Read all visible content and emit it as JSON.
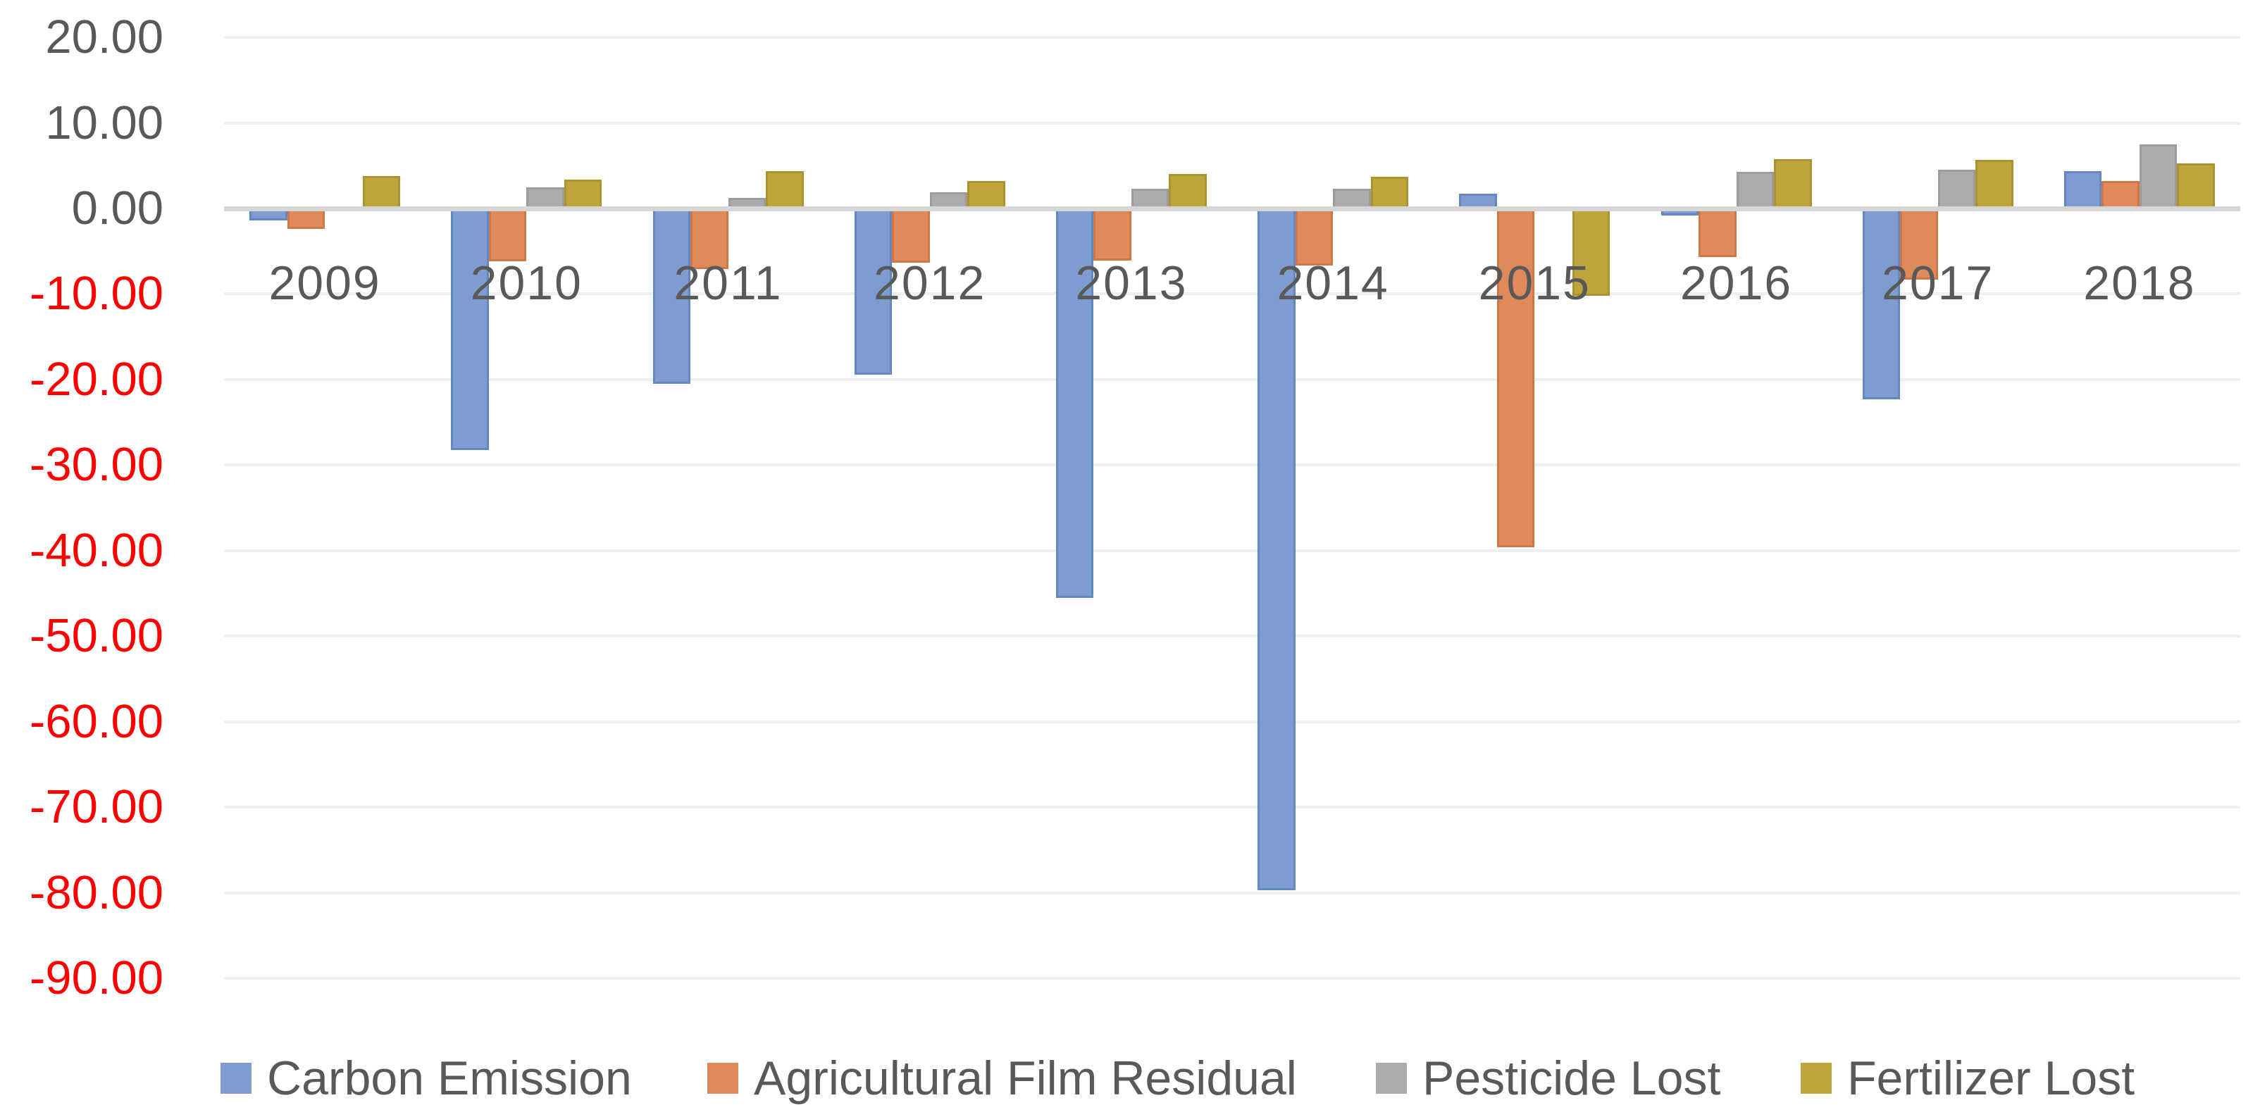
{
  "chart_data": {
    "type": "bar",
    "title": "",
    "xlabel": "",
    "ylabel": "",
    "categories": [
      "2009",
      "2010",
      "2011",
      "2012",
      "2013",
      "2014",
      "2015",
      "2016",
      "2017",
      "2018"
    ],
    "series": [
      {
        "name": "Carbon Emission",
        "color": "#7e9cd0",
        "border_color": "#6287c2",
        "values": [
          -1.4,
          -28.2,
          -20.5,
          -19.4,
          -45.5,
          -79.7,
          1.7,
          -0.8,
          -22.3,
          4.4
        ]
      },
      {
        "name": "Agricultural Film Residual",
        "color": "#e08a5c",
        "border_color": "#d07845",
        "values": [
          -2.4,
          -6.2,
          -7.1,
          -6.3,
          -6.1,
          -6.7,
          -39.6,
          -5.7,
          -8.3,
          3.2
        ]
      },
      {
        "name": "Pesticide Lost",
        "color": "#ababab",
        "border_color": "#9c9c9c",
        "values": [
          0.0,
          2.5,
          1.2,
          1.9,
          2.3,
          2.3,
          0.0,
          4.3,
          4.5,
          7.5
        ]
      },
      {
        "name": "Fertilizer Lost",
        "color": "#bfa33b",
        "border_color": "#ad922e",
        "values": [
          3.8,
          3.4,
          4.4,
          3.2,
          4.0,
          3.7,
          -10.2,
          5.8,
          5.7,
          5.3
        ]
      }
    ],
    "y_axis": {
      "min": -90,
      "max": 20,
      "step": 10,
      "tick_labels": [
        "20.00",
        "10.00",
        "0.00",
        "-10.00",
        "-20.00",
        "-30.00",
        "-40.00",
        "-50.00",
        "-60.00",
        "-70.00",
        "-80.00",
        "-90.00"
      ],
      "tick_values": [
        20,
        10,
        0,
        -10,
        -20,
        -30,
        -40,
        -50,
        -60,
        -70,
        -80,
        -90
      ],
      "positive_label_color": "#595959",
      "negative_label_color": "#ff0000"
    },
    "grid": true,
    "gridline_color": "#efefef",
    "axis_line_color": "#d6d6d6",
    "category_label_color": "#595959",
    "legend_position": "bottom"
  }
}
